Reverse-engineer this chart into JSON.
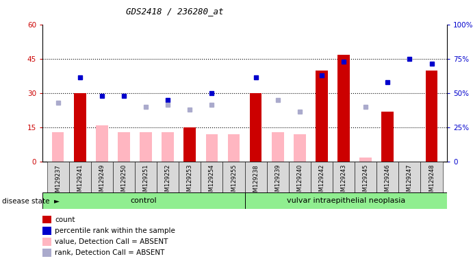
{
  "title": "GDS2418 / 236280_at",
  "samples": [
    "GSM129237",
    "GSM129241",
    "GSM129249",
    "GSM129250",
    "GSM129251",
    "GSM129252",
    "GSM129253",
    "GSM129254",
    "GSM129255",
    "GSM129238",
    "GSM129239",
    "GSM129240",
    "GSM129242",
    "GSM129243",
    "GSM129245",
    "GSM129246",
    "GSM129247",
    "GSM129248"
  ],
  "n_control": 9,
  "n_disease": 9,
  "red_bars": [
    0,
    30,
    0,
    0,
    0,
    0,
    15,
    0,
    0,
    30,
    0,
    0,
    40,
    47,
    0,
    22,
    0,
    40
  ],
  "pink_bars": [
    13,
    0,
    16,
    13,
    13,
    13,
    0,
    12,
    12,
    0,
    13,
    12,
    0,
    0,
    2,
    0,
    0,
    0
  ],
  "blue_squares_left": [
    null,
    37,
    29,
    29,
    null,
    27,
    null,
    30,
    null,
    37,
    null,
    null,
    38,
    44,
    null,
    35,
    45,
    43
  ],
  "lavender_squares_left": [
    26,
    null,
    null,
    null,
    24,
    25,
    23,
    25,
    null,
    null,
    27,
    22,
    null,
    null,
    24,
    null,
    null,
    null
  ],
  "ylim_left": [
    0,
    60
  ],
  "ylim_right": [
    0,
    100
  ],
  "yticks_left": [
    0,
    15,
    30,
    45,
    60
  ],
  "ytick_labels_left": [
    "0",
    "15",
    "30",
    "45",
    "60"
  ],
  "yticks_right_vals": [
    0,
    15,
    30,
    45,
    60
  ],
  "ytick_labels_right": [
    "0",
    "25%",
    "50%",
    "75%",
    "100%"
  ],
  "red_color": "#CC0000",
  "pink_color": "#FFB6C1",
  "blue_color": "#0000CC",
  "lavender_color": "#AAAACC",
  "bg_color": "#D8D8D8",
  "plot_bg": "#FFFFFF",
  "control_label": "control",
  "disease_label": "vulvar intraepithelial neoplasia",
  "group_bg": "#90EE90",
  "title_fontsize": 9,
  "legend_items": [
    {
      "label": "count",
      "color": "#CC0000"
    },
    {
      "label": "percentile rank within the sample",
      "color": "#0000CC"
    },
    {
      "label": "value, Detection Call = ABSENT",
      "color": "#FFB6C1"
    },
    {
      "label": "rank, Detection Call = ABSENT",
      "color": "#AAAACC"
    }
  ]
}
